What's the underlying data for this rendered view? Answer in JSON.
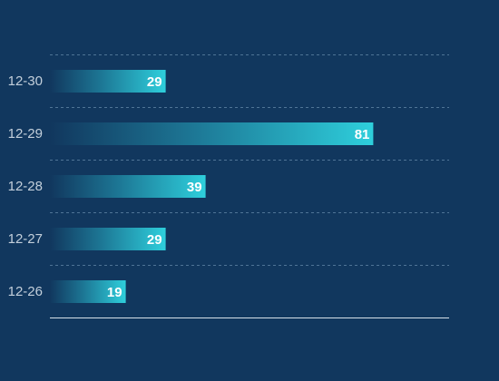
{
  "colors": {
    "background": "#11375e",
    "bar_start": "#11375e",
    "bar_end": "#2ecfdc",
    "grid": "#4f7496",
    "axis": "#d6e1ea",
    "category_text": "#c3cfdb",
    "value_text": "#ffffff"
  },
  "chart_data": {
    "type": "bar",
    "orientation": "horizontal",
    "categories": [
      "12-30",
      "12-29",
      "12-28",
      "12-27",
      "12-26"
    ],
    "values": [
      29,
      81,
      39,
      29,
      19
    ],
    "title": "",
    "xlabel": "",
    "ylabel": "",
    "xlim": [
      0,
      100
    ],
    "grid": true,
    "legend": "none",
    "data_labels": "inside-end"
  }
}
